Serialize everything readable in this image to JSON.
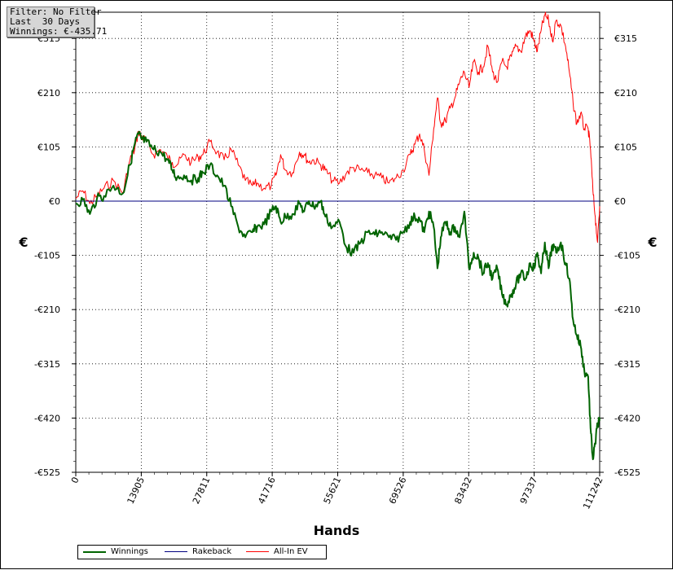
{
  "filter_box": {
    "line1": "Filter: No Filter",
    "line2": "Last  30 Days",
    "line3": "Winnings: €-435.71"
  },
  "chart_data": {
    "type": "line",
    "xlabel": "Hands",
    "ylabel_left": "€",
    "ylabel_right": "€",
    "xlim": [
      0,
      111242
    ],
    "ylim": [
      -525,
      363
    ],
    "x_ticks": [
      "0",
      "13905",
      "27811",
      "41716",
      "55621",
      "69526",
      "83432",
      "97337",
      "111242"
    ],
    "y_ticks": [
      {
        "value": 315,
        "label": "€315"
      },
      {
        "value": 210,
        "label": "€210"
      },
      {
        "value": 105,
        "label": "€105"
      },
      {
        "value": 0,
        "label": "€0"
      },
      {
        "value": -105,
        "label": "-€105"
      },
      {
        "value": -210,
        "label": "-€210"
      },
      {
        "value": -315,
        "label": "-€315"
      },
      {
        "value": -420,
        "label": "-€420"
      },
      {
        "value": -525,
        "label": "-€525"
      }
    ],
    "grid": true,
    "legend_position": "bottom-left",
    "series": [
      {
        "name": "Winnings",
        "color": "#006400",
        "x": [
          0,
          1500,
          3000,
          4500,
          6000,
          8000,
          10000,
          11500,
          12500,
          13300,
          14000,
          15000,
          16500,
          18000,
          19500,
          20500,
          21500,
          23000,
          24500,
          26000,
          27000,
          28500,
          30000,
          31500,
          33000,
          34500,
          36000,
          37500,
          38500,
          40000,
          41500,
          42500,
          43500,
          44500,
          46000,
          47500,
          48500,
          49500,
          50500,
          52000,
          53000,
          54500,
          56000,
          57500,
          59000,
          60500,
          62000,
          63500,
          65000,
          66500,
          68000,
          69500,
          71000,
          72000,
          73000,
          74000,
          75000,
          76000,
          76800,
          77500,
          78500,
          79500,
          80500,
          81500,
          82500,
          83500,
          84500,
          85500,
          86500,
          87500,
          88500,
          89500,
          90500,
          91500,
          92500,
          93500,
          94500,
          95500,
          96500,
          97300,
          98000,
          98800,
          99600,
          100400,
          101200,
          102000,
          103000,
          104000,
          104800,
          105600,
          106400,
          107200,
          108000,
          108800,
          109300,
          109800,
          110300,
          110800,
          111242
        ],
        "values": [
          -5,
          3,
          -25,
          5,
          10,
          30,
          15,
          70,
          110,
          130,
          120,
          115,
          100,
          95,
          80,
          60,
          45,
          50,
          40,
          45,
          55,
          70,
          50,
          30,
          -10,
          -50,
          -70,
          -60,
          -50,
          -45,
          -20,
          -10,
          -40,
          -30,
          -25,
          -5,
          -20,
          0,
          -10,
          0,
          -30,
          -50,
          -40,
          -90,
          -100,
          -80,
          -60,
          -65,
          -60,
          -70,
          -75,
          -60,
          -40,
          -30,
          -35,
          -60,
          -20,
          -50,
          -130,
          -70,
          -40,
          -60,
          -50,
          -70,
          -20,
          -130,
          -100,
          -110,
          -140,
          -120,
          -150,
          -130,
          -180,
          -200,
          -180,
          -160,
          -140,
          -150,
          -120,
          -130,
          -100,
          -140,
          -80,
          -130,
          -85,
          -100,
          -80,
          -120,
          -150,
          -230,
          -260,
          -280,
          -330,
          -340,
          -440,
          -500,
          -470,
          -430,
          -425
        ]
      },
      {
        "name": "Rakeback",
        "color": "#000080",
        "x": [
          0,
          111242
        ],
        "values": [
          0,
          0
        ]
      },
      {
        "name": "All-In EV",
        "color": "#ff0000",
        "x": [
          0,
          1500,
          3000,
          4500,
          6000,
          8000,
          10000,
          11500,
          12500,
          13300,
          14000,
          15000,
          16500,
          18000,
          19500,
          20500,
          21500,
          23000,
          24500,
          26000,
          27000,
          28500,
          30000,
          31500,
          33000,
          34500,
          36000,
          37500,
          38500,
          40000,
          41500,
          42500,
          43500,
          44500,
          46000,
          47500,
          48500,
          49500,
          50500,
          52000,
          53000,
          54500,
          56000,
          57500,
          59000,
          60500,
          62000,
          63500,
          65000,
          66500,
          68000,
          69500,
          71000,
          72000,
          73000,
          74000,
          75000,
          76000,
          76800,
          77500,
          78500,
          79500,
          80500,
          81500,
          82500,
          83500,
          84500,
          85500,
          86500,
          87500,
          88500,
          89500,
          90500,
          91500,
          92500,
          93500,
          94500,
          95500,
          96500,
          97300,
          98000,
          98800,
          99600,
          100400,
          101200,
          102000,
          103000,
          104000,
          104800,
          105600,
          106400,
          107200,
          108000,
          108800,
          109300,
          109800,
          110300,
          110800,
          111242
        ],
        "values": [
          5,
          20,
          -5,
          10,
          25,
          40,
          15,
          80,
          100,
          135,
          125,
          115,
          90,
          100,
          85,
          75,
          70,
          90,
          75,
          85,
          90,
          115,
          95,
          80,
          100,
          70,
          40,
          30,
          35,
          25,
          30,
          50,
          90,
          60,
          55,
          95,
          90,
          75,
          80,
          70,
          60,
          40,
          35,
          55,
          65,
          60,
          55,
          50,
          45,
          35,
          45,
          60,
          90,
          110,
          130,
          100,
          50,
          140,
          200,
          150,
          155,
          180,
          200,
          230,
          250,
          220,
          270,
          250,
          260,
          300,
          250,
          230,
          270,
          260,
          280,
          300,
          290,
          320,
          330,
          310,
          290,
          330,
          360,
          350,
          310,
          350,
          340,
          300,
          250,
          190,
          150,
          170,
          140,
          140,
          100,
          20,
          -30,
          -80,
          -10
        ]
      }
    ]
  },
  "legend": {
    "items": [
      "Winnings",
      "Rakeback",
      "All-In EV"
    ]
  }
}
